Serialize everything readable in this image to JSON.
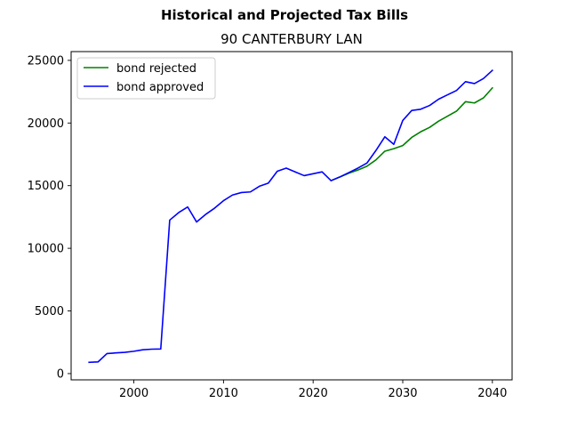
{
  "chart_data": {
    "type": "line",
    "title": "Historical and Projected Tax Bills",
    "subtitle": "90 CANTERBURY LAN",
    "xlabel": "",
    "ylabel": "",
    "xlim": [
      1993.0,
      2042.2
    ],
    "ylim": [
      -500,
      25700
    ],
    "xticks": [
      2000,
      2010,
      2020,
      2030,
      2040
    ],
    "yticks": [
      0,
      5000,
      10000,
      15000,
      20000,
      25000
    ],
    "grid": false,
    "legend_position": "upper-left",
    "series": [
      {
        "name": "bond rejected",
        "color": "#008000",
        "x": [
          2022,
          2023,
          2024,
          2025,
          2026,
          2027,
          2028,
          2029,
          2030,
          2031,
          2032,
          2033,
          2034,
          2035,
          2036,
          2037,
          2038,
          2039,
          2040
        ],
        "y": [
          15400,
          15700,
          16000,
          16250,
          16550,
          17050,
          17750,
          17950,
          18200,
          18850,
          19300,
          19650,
          20150,
          20550,
          20950,
          21700,
          21600,
          22000,
          22800
        ]
      },
      {
        "name": "bond approved",
        "color": "#0000ff",
        "x": [
          1995,
          1996,
          1997,
          1998,
          1999,
          2000,
          2001,
          2002,
          2003,
          2004,
          2005,
          2006,
          2007,
          2008,
          2009,
          2010,
          2011,
          2012,
          2013,
          2014,
          2015,
          2016,
          2017,
          2018,
          2019,
          2020,
          2021,
          2022,
          2023,
          2024,
          2025,
          2026,
          2027,
          2028,
          2029,
          2030,
          2031,
          2032,
          2033,
          2034,
          2035,
          2036,
          2037,
          2038,
          2039,
          2040
        ],
        "y": [
          900,
          930,
          1600,
          1650,
          1700,
          1780,
          1900,
          1950,
          1960,
          12250,
          12850,
          13300,
          12100,
          12700,
          13200,
          13800,
          14250,
          14450,
          14500,
          14950,
          15200,
          16150,
          16400,
          16100,
          15800,
          15950,
          16100,
          15400,
          15700,
          16050,
          16400,
          16800,
          17800,
          18900,
          18300,
          20200,
          21000,
          21100,
          21400,
          21900,
          22250,
          22600,
          23300,
          23150,
          23550,
          24200
        ]
      }
    ]
  }
}
